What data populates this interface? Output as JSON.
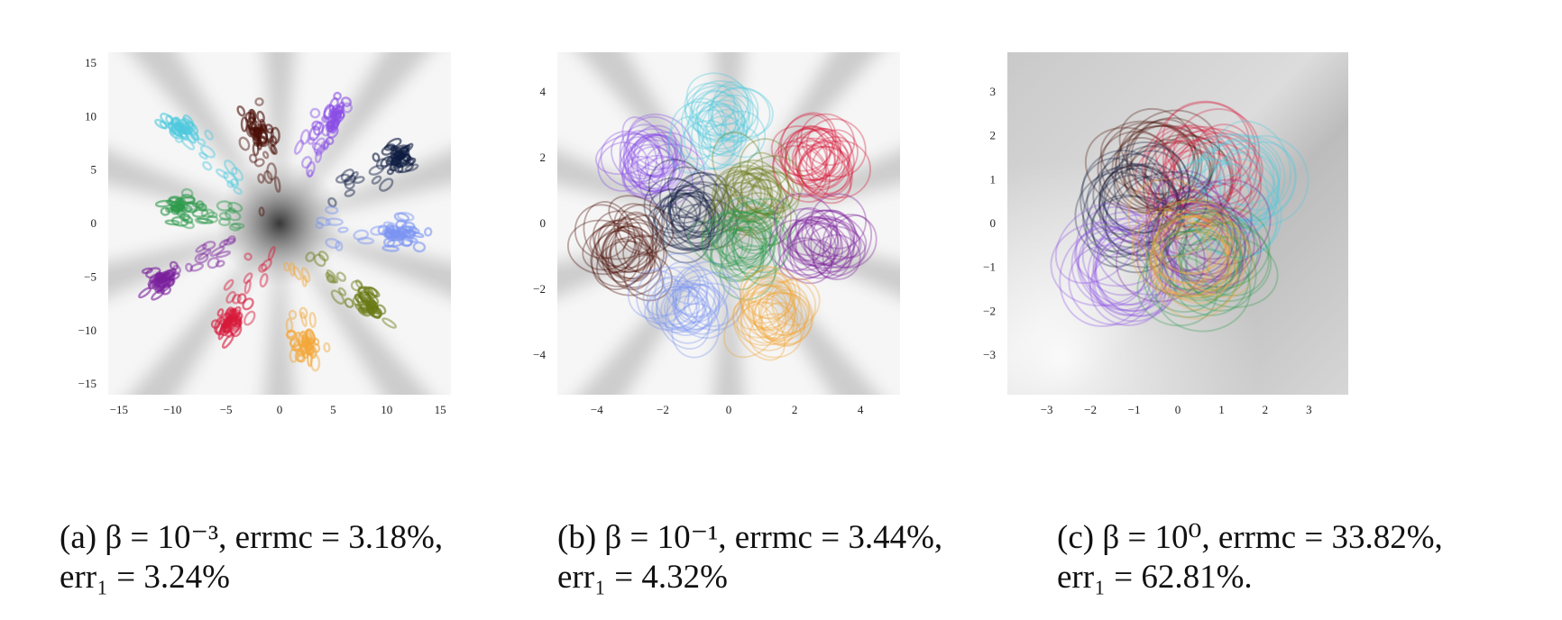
{
  "chart_data": [
    {
      "type": "scatter",
      "panel_label": "(a)",
      "xlim": [
        -16,
        16
      ],
      "ylim": [
        -16,
        16
      ],
      "xticks": [
        -15,
        -10,
        -5,
        0,
        5,
        10,
        15
      ],
      "yticks": [
        -15,
        -10,
        -5,
        0,
        5,
        10,
        15
      ],
      "xtick_labels": [
        "−15",
        "−10",
        "−5",
        "0",
        "5",
        "10",
        "15"
      ],
      "ytick_labels": [
        "−15",
        "−10",
        "−5",
        "0",
        "5",
        "10",
        "15"
      ],
      "background": "radial-shading",
      "grid": false,
      "series": [
        {
          "color": "#4fc9de",
          "center": [
            -9.5,
            9.0
          ]
        },
        {
          "color": "#4a0f07",
          "center": [
            -2.0,
            8.7
          ]
        },
        {
          "color": "#8a4fe6",
          "center": [
            5.0,
            10.0
          ]
        },
        {
          "color": "#0d1b40",
          "center": [
            11.0,
            6.0
          ]
        },
        {
          "color": "#2f9a4c",
          "center": [
            -9.5,
            1.5
          ]
        },
        {
          "color": "#7b94f2",
          "center": [
            11.0,
            -1.0
          ]
        },
        {
          "color": "#6a7a16",
          "center": [
            8.5,
            -7.5
          ]
        },
        {
          "color": "#7a1f9c",
          "center": [
            -11.0,
            -5.5
          ]
        },
        {
          "color": "#d7193a",
          "center": [
            -4.5,
            -9.0
          ]
        },
        {
          "color": "#f2a73a",
          "center": [
            2.5,
            -11.5
          ]
        }
      ]
    },
    {
      "type": "scatter",
      "panel_label": "(b)",
      "xlim": [
        -5.2,
        5.2
      ],
      "ylim": [
        -5.2,
        5.2
      ],
      "xticks": [
        -4,
        -2,
        0,
        2,
        4
      ],
      "yticks": [
        -4,
        -2,
        0,
        2,
        4
      ],
      "xtick_labels": [
        "−4",
        "−2",
        "0",
        "2",
        "4"
      ],
      "ytick_labels": [
        "−4",
        "−2",
        "0",
        "2",
        "4"
      ],
      "background": "radial-shading",
      "grid": false,
      "series": [
        {
          "color": "#8a4fe6",
          "center": [
            -2.5,
            2.0
          ]
        },
        {
          "color": "#4fc9de",
          "center": [
            -0.2,
            3.0
          ]
        },
        {
          "color": "#d7193a",
          "center": [
            2.6,
            2.0
          ]
        },
        {
          "color": "#0d1b40",
          "center": [
            -1.2,
            0.3
          ]
        },
        {
          "color": "#6a7a16",
          "center": [
            0.7,
            0.9
          ]
        },
        {
          "color": "#2f9a4c",
          "center": [
            0.5,
            -0.6
          ]
        },
        {
          "color": "#4a0f07",
          "center": [
            -3.1,
            -0.8
          ]
        },
        {
          "color": "#7a1f9c",
          "center": [
            2.8,
            -0.6
          ]
        },
        {
          "color": "#7b94f2",
          "center": [
            -1.2,
            -2.6
          ]
        },
        {
          "color": "#f2a73a",
          "center": [
            1.3,
            -2.8
          ]
        }
      ]
    },
    {
      "type": "scatter",
      "panel_label": "(c)",
      "xlim": [
        -3.9,
        3.9
      ],
      "ylim": [
        -3.9,
        3.9
      ],
      "xticks": [
        -3,
        -2,
        -1,
        0,
        1,
        2,
        3
      ],
      "yticks": [
        -3,
        -2,
        -1,
        0,
        1,
        2,
        3
      ],
      "xtick_labels": [
        "−3",
        "−2",
        "−1",
        "0",
        "1",
        "2",
        "3"
      ],
      "ytick_labels": [
        "3",
        "2",
        "1",
        "0",
        "−1",
        "−2",
        "−3"
      ],
      "background": "linear-shading",
      "grid": false,
      "series": [
        {
          "color": "#4a0f07",
          "center": [
            -0.6,
            1.2
          ]
        },
        {
          "color": "#d7193a",
          "center": [
            0.5,
            1.2
          ]
        },
        {
          "color": "#4fc9de",
          "center": [
            1.4,
            0.8
          ]
        },
        {
          "color": "#0d1b40",
          "center": [
            -1.0,
            0.4
          ]
        },
        {
          "color": "#8a4fe6",
          "center": [
            -1.1,
            -1.0
          ]
        },
        {
          "color": "#7a1f9c",
          "center": [
            0.6,
            -0.4
          ]
        },
        {
          "color": "#2f9a4c",
          "center": [
            0.7,
            -1.0
          ]
        },
        {
          "color": "#f2a73a",
          "center": [
            0.3,
            -0.7
          ]
        }
      ]
    }
  ],
  "captions": [
    {
      "line1": "(a) β = 10⁻³, errmc = 3.18%,",
      "line2": "err₁ = 3.24%"
    },
    {
      "line1": "(b) β = 10⁻¹, errmc = 3.44%,",
      "line2": "err₁ = 4.32%"
    },
    {
      "line1": "(c) β = 10⁰, errmc = 33.82%,",
      "line2": "err₁ = 62.81%."
    }
  ]
}
